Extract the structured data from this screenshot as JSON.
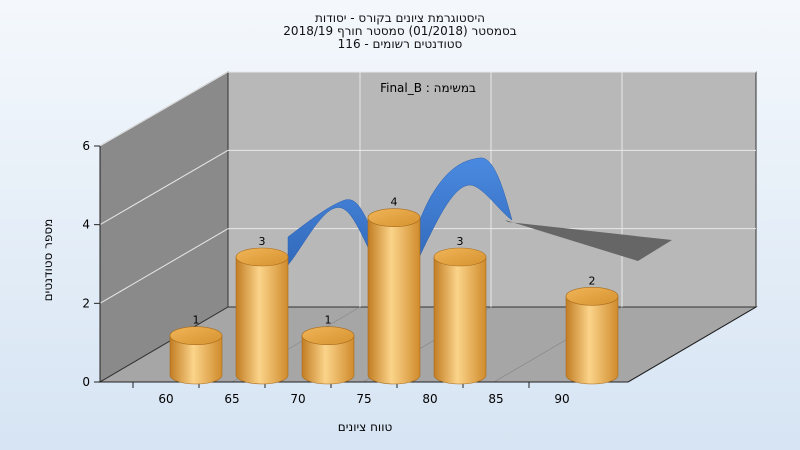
{
  "title_lines": [
    "היסטוגרמת ציונים בקורס - יסודות",
    "בסמסטר  (01/2018)  סמסטר חורף 2018/19",
    "סטודנטים רשומים - 116"
  ],
  "chart_data": {
    "type": "bar",
    "task_label": "במשימה : Final_B",
    "categories": [
      "60",
      "65",
      "70",
      "75",
      "80",
      "85",
      "90"
    ],
    "values": [
      1,
      3,
      1,
      4,
      3,
      0,
      2
    ],
    "data_labels": [
      "1",
      "3",
      "1",
      "4",
      "3",
      "",
      "2"
    ],
    "y_ticks": [
      "0",
      "2",
      "4",
      "6"
    ],
    "ylim": [
      0,
      6
    ],
    "xlabel": "טווח ציונים",
    "ylabel": "מספר סטודנטים",
    "grid": true,
    "colors": {
      "bar_light": "#fbd48a",
      "bar_mid": "#e9a446",
      "bar_dark": "#c27d23",
      "curve": "#3a78cf",
      "curve_dark": "#2a5fb0",
      "curve_shadow": "#666666",
      "back_wall": "#b8b8b8",
      "side_wall": "#8a8a8a",
      "floor": "#a6a6a6"
    }
  }
}
